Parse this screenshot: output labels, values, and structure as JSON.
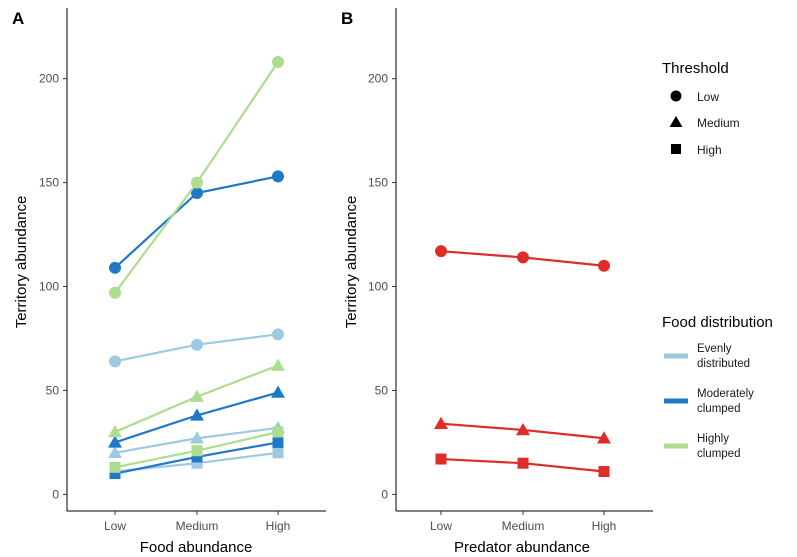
{
  "colors": {
    "evenly": "#9ecae1",
    "moderately": "#1f78c8",
    "highly": "#addd8e",
    "predator": "#de2d26"
  },
  "chart_data": [
    {
      "type": "line",
      "panel_label": "A",
      "xlabel": "Food abundance",
      "ylabel": "Territory abundance",
      "categories": [
        "Low",
        "Medium",
        "High"
      ],
      "ylim": [
        -8,
        234
      ],
      "yticks": [
        0,
        50,
        100,
        150,
        200
      ],
      "grid": false,
      "series": [
        {
          "name": "Evenly distributed",
          "color_key": "evenly",
          "shape": "circle",
          "values": [
            64,
            72,
            77
          ]
        },
        {
          "name": "Evenly distributed",
          "color_key": "evenly",
          "shape": "triangle",
          "values": [
            20,
            27,
            32
          ]
        },
        {
          "name": "Evenly distributed",
          "color_key": "evenly",
          "shape": "square",
          "values": [
            11,
            15,
            20
          ]
        },
        {
          "name": "Moderately clumped",
          "color_key": "moderately",
          "shape": "circle",
          "values": [
            109,
            145,
            153
          ]
        },
        {
          "name": "Moderately clumped",
          "color_key": "moderately",
          "shape": "triangle",
          "values": [
            25,
            38,
            49
          ]
        },
        {
          "name": "Moderately clumped",
          "color_key": "moderately",
          "shape": "square",
          "values": [
            10,
            18,
            25
          ]
        },
        {
          "name": "Highly clumped",
          "color_key": "highly",
          "shape": "circle",
          "values": [
            97,
            150,
            208
          ]
        },
        {
          "name": "Highly clumped",
          "color_key": "highly",
          "shape": "triangle",
          "values": [
            30,
            47,
            62
          ]
        },
        {
          "name": "Highly clumped",
          "color_key": "highly",
          "shape": "square",
          "values": [
            13,
            21,
            30
          ]
        }
      ]
    },
    {
      "type": "line",
      "panel_label": "B",
      "xlabel": "Predator abundance",
      "ylabel": "Territory abundance",
      "categories": [
        "Low",
        "Medium",
        "High"
      ],
      "ylim": [
        -8,
        234
      ],
      "yticks": [
        0,
        50,
        100,
        150,
        200
      ],
      "grid": false,
      "series": [
        {
          "color_key": "predator",
          "shape": "circle",
          "values": [
            117,
            114,
            110
          ]
        },
        {
          "color_key": "predator",
          "shape": "triangle",
          "values": [
            34,
            31,
            27
          ]
        },
        {
          "color_key": "predator",
          "shape": "square",
          "values": [
            17,
            15,
            11
          ]
        }
      ]
    }
  ],
  "legend": {
    "placement": "right",
    "threshold": {
      "title": "Threshold",
      "items": [
        {
          "label": "Low",
          "shape": "circle"
        },
        {
          "label": "Medium",
          "shape": "triangle"
        },
        {
          "label": "High",
          "shape": "square"
        }
      ]
    },
    "food_distribution": {
      "title": "Food distribution",
      "items": [
        {
          "lines": [
            "Evenly",
            "distributed"
          ],
          "color_key": "evenly"
        },
        {
          "lines": [
            "Moderately",
            "clumped"
          ],
          "color_key": "moderately"
        },
        {
          "lines": [
            "Highly",
            "clumped"
          ],
          "color_key": "highly"
        }
      ]
    }
  }
}
